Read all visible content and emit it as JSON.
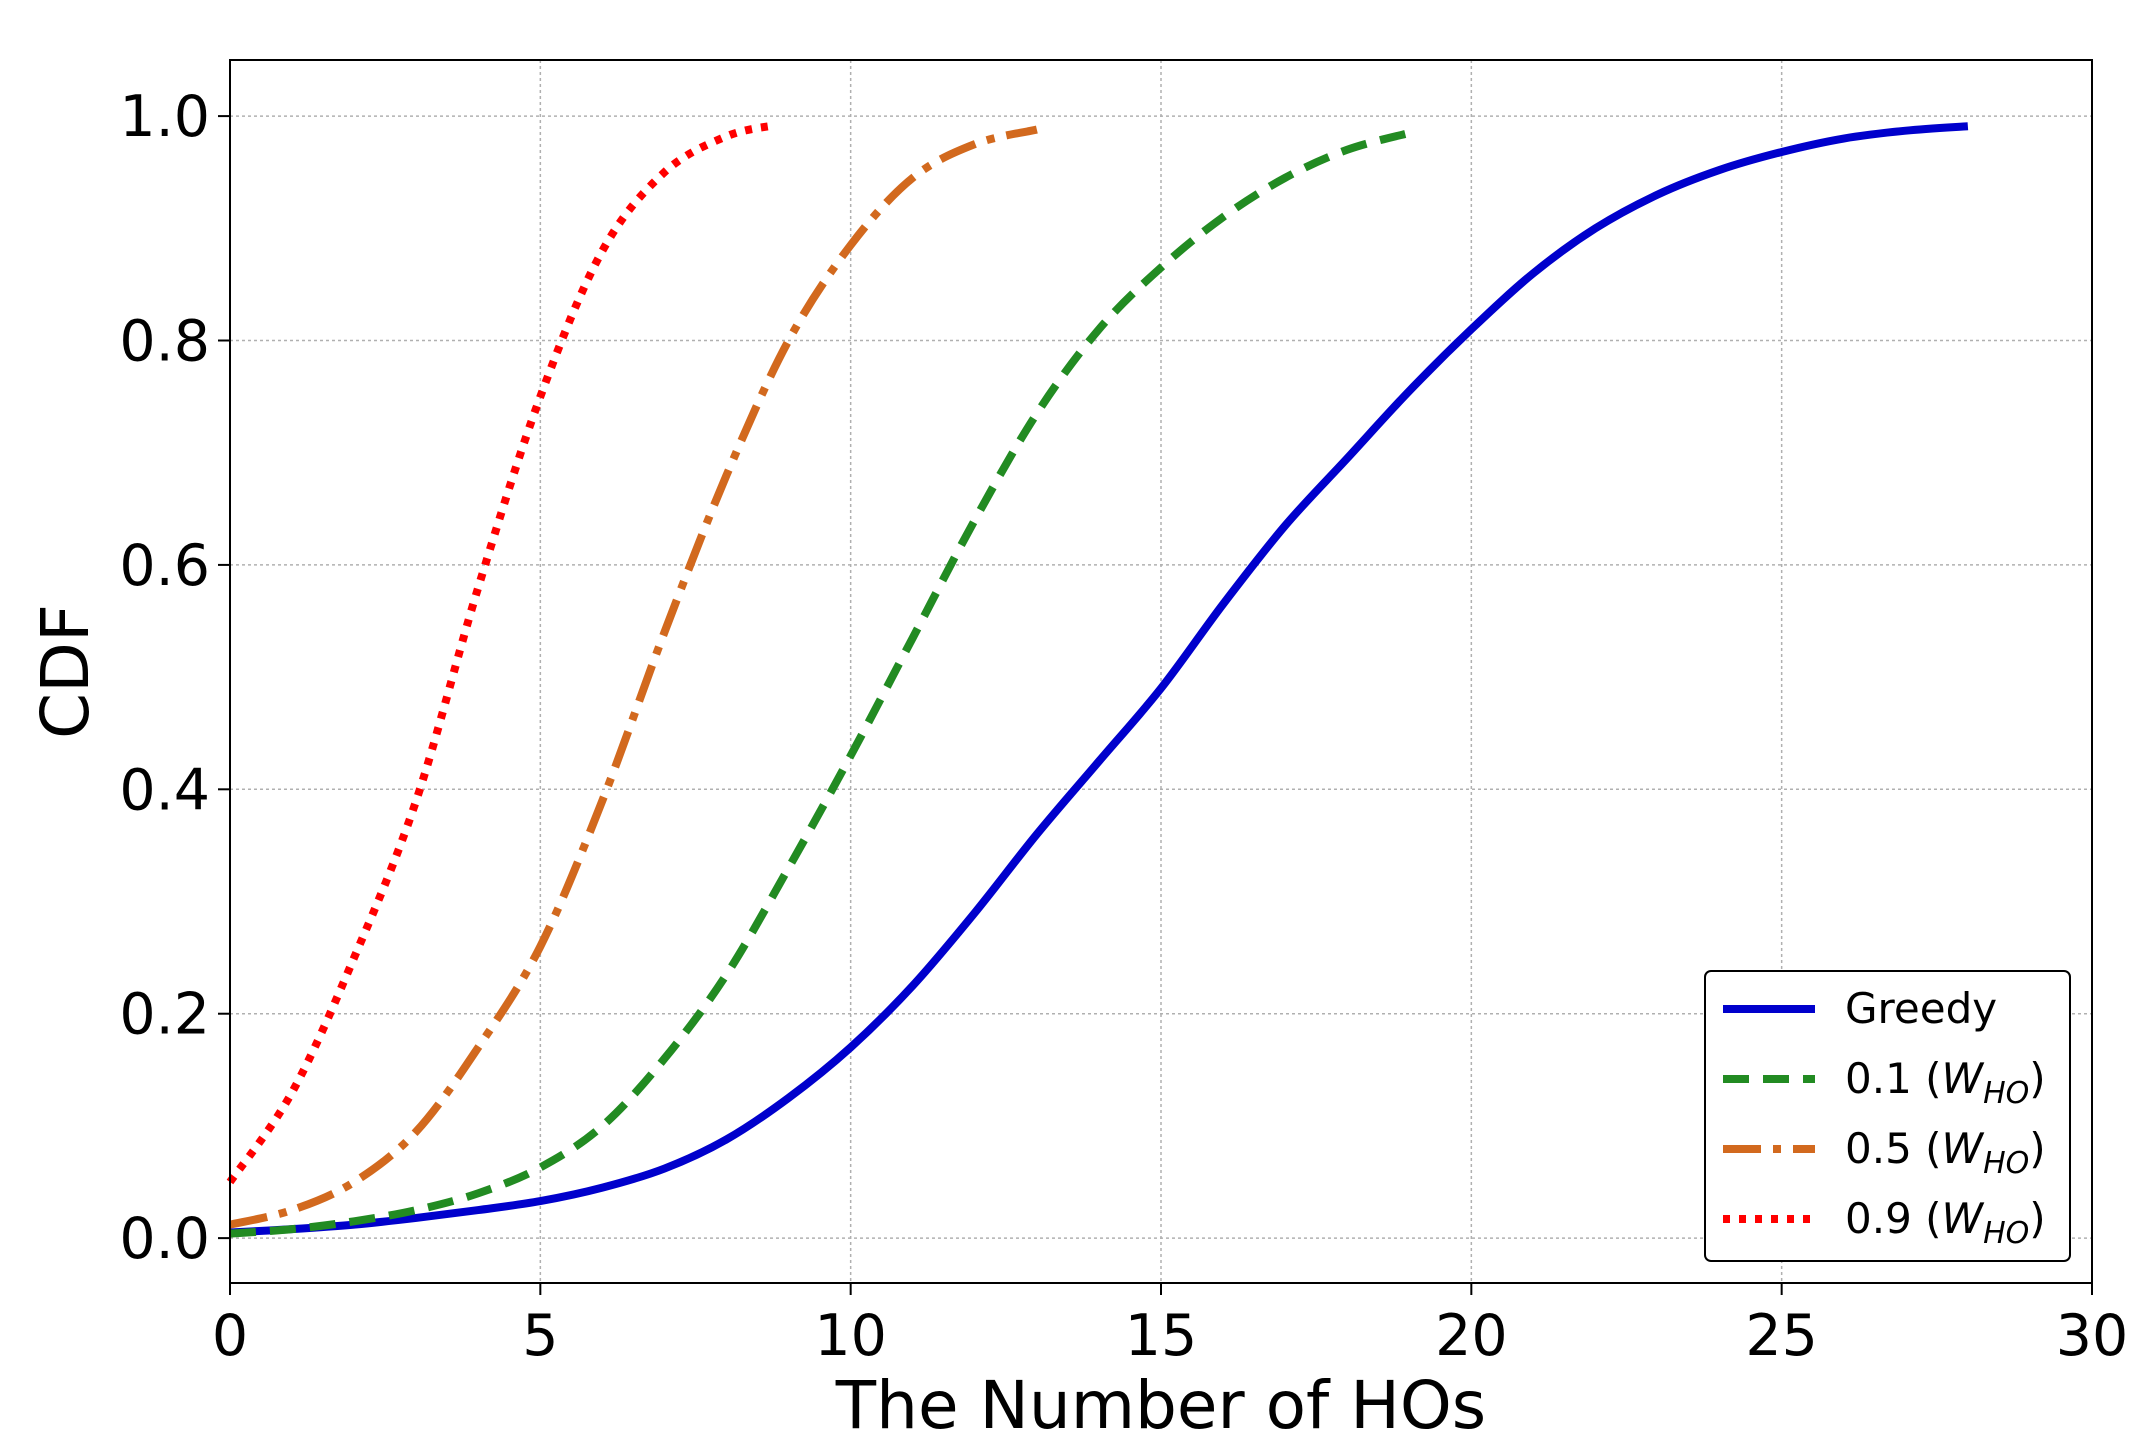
{
  "chart_data": {
    "type": "line",
    "title": "",
    "xlabel": "The Number of HOs",
    "ylabel": "CDF",
    "xlim": [
      0,
      30
    ],
    "ylim": [
      -0.04,
      1.05
    ],
    "xticks": [
      0,
      5,
      10,
      15,
      20,
      25,
      30
    ],
    "yticks": [
      0.0,
      0.2,
      0.4,
      0.6,
      0.8,
      1.0
    ],
    "xtick_labels": [
      "0",
      "5",
      "10",
      "15",
      "20",
      "25",
      "30"
    ],
    "ytick_labels": [
      "0.0",
      "0.2",
      "0.4",
      "0.6",
      "0.8",
      "1.0"
    ],
    "grid": true,
    "legend_position": "bottom-right",
    "series": [
      {
        "name": "Greedy",
        "legend": {
          "main": "Greedy",
          "sub": ""
        },
        "color": "#0000cc",
        "style": "solid",
        "x": [
          0,
          1,
          2,
          3,
          4,
          5,
          6,
          7,
          8,
          9,
          10,
          11,
          12,
          13,
          14,
          15,
          16,
          17,
          18,
          19,
          20,
          21,
          22,
          23,
          24,
          25,
          26,
          27,
          28
        ],
        "y": [
          0.005,
          0.008,
          0.012,
          0.018,
          0.025,
          0.033,
          0.045,
          0.062,
          0.088,
          0.125,
          0.17,
          0.225,
          0.29,
          0.36,
          0.425,
          0.49,
          0.565,
          0.635,
          0.695,
          0.755,
          0.81,
          0.86,
          0.9,
          0.93,
          0.952,
          0.968,
          0.98,
          0.987,
          0.991
        ]
      },
      {
        "name": "0.1 (W_HO)",
        "legend": {
          "main": "0.1 (",
          "sub": ")"
        },
        "color": "#228b22",
        "style": "dashed",
        "x": [
          0,
          1,
          2,
          3,
          4,
          5,
          6,
          7,
          8,
          9,
          10,
          11,
          12,
          13,
          14,
          15,
          16,
          17,
          18,
          19
        ],
        "y": [
          0.004,
          0.008,
          0.015,
          0.025,
          0.04,
          0.063,
          0.1,
          0.16,
          0.235,
          0.33,
          0.43,
          0.535,
          0.64,
          0.735,
          0.81,
          0.865,
          0.91,
          0.945,
          0.97,
          0.985
        ]
      },
      {
        "name": "0.5 (W_HO)",
        "legend": {
          "main": "0.5 (",
          "sub": ")"
        },
        "color": "#d2691e",
        "style": "dashdot",
        "x": [
          0,
          1,
          2,
          3,
          4,
          5,
          6,
          7,
          8,
          9,
          10,
          11,
          12,
          13
        ],
        "y": [
          0.012,
          0.025,
          0.05,
          0.095,
          0.17,
          0.26,
          0.39,
          0.54,
          0.68,
          0.8,
          0.885,
          0.945,
          0.975,
          0.988
        ]
      },
      {
        "name": "0.9 (W_HO)",
        "legend": {
          "main": "0.9 (",
          "sub": ")"
        },
        "color": "#ff0000",
        "style": "dotted",
        "x": [
          0,
          1,
          2,
          3,
          4,
          5,
          6,
          7,
          8,
          8.8
        ],
        "y": [
          0.05,
          0.13,
          0.25,
          0.39,
          0.58,
          0.75,
          0.88,
          0.95,
          0.982,
          0.992
        ]
      }
    ]
  }
}
